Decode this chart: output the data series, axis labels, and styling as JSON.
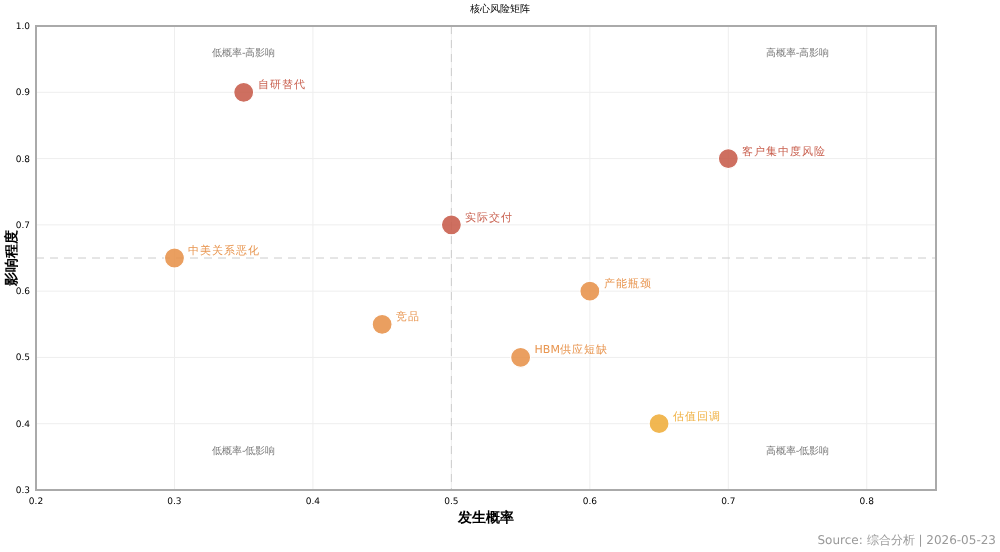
{
  "chart_data": {
    "type": "scatter",
    "title": "核心风险矩阵",
    "xlabel": "发生概率",
    "ylabel": "影响程度",
    "x": [
      0.35,
      0.7,
      0.5,
      0.3,
      0.6,
      0.45,
      0.55,
      0.65
    ],
    "values": [
      0.9,
      0.8,
      0.7,
      0.65,
      0.6,
      0.55,
      0.5,
      0.4
    ],
    "colors": [
      "#c9604f",
      "#c9604f",
      "#c9604f",
      "#e8954f",
      "#e8954f",
      "#e8954f",
      "#e8954f",
      "#f0b040"
    ],
    "annotations": [
      "低概率-高影响",
      "高概率-高影响",
      "低概率-低影响",
      "高概率-低影响",
      "Source: 综合分析 | 2026-05-23",
      {
        "text": "自研替代",
        "x": 0.35,
        "y": 0.9
      },
      {
        "text": "客户集中度风险",
        "x": 0.7,
        "y": 0.8
      },
      {
        "text": "实际交付",
        "x": 0.5,
        "y": 0.7
      },
      {
        "text": "中美关系恶化",
        "x": 0.3,
        "y": 0.65
      },
      {
        "text": "产能瓶颈",
        "x": 0.6,
        "y": 0.6
      },
      {
        "text": "竞品",
        "x": 0.45,
        "y": 0.55
      },
      {
        "text": "HBM供应短缺",
        "x": 0.55,
        "y": 0.5
      },
      {
        "text": "估值回调",
        "x": 0.65,
        "y": 0.4
      }
    ],
    "xlim": [
      0.2,
      0.85
    ],
    "xticks": [
      0.2,
      0.3,
      0.4,
      0.5,
      0.6,
      0.7,
      0.8
    ],
    "ylim": [
      0.3,
      1.0
    ],
    "yticks": [
      0.3,
      0.4,
      0.5,
      0.6,
      0.7,
      0.8,
      0.9,
      {
        "value": 1.0,
        "label": "1.0"
      }
    ],
    "ref_lines": [
      {
        "axis": "y",
        "value": 0.65,
        "color": "#cccccc",
        "line_style": "dashed"
      },
      {
        "axis": "x",
        "value": 0.5,
        "color": "#cccccc",
        "line_style": "dashed"
      }
    ],
    "grid": true,
    "marker": "circle"
  }
}
